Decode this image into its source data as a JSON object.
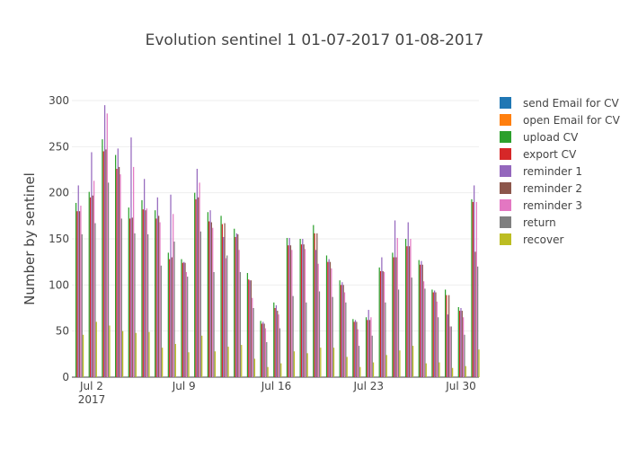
{
  "chart_data": {
    "type": "bar",
    "title": "Evolution sentinel 1 01-07-2017 01-08-2017",
    "xlabel": "",
    "ylabel": "Number by sentinel",
    "ylim": [
      0,
      310
    ],
    "yticks": [
      0,
      50,
      100,
      150,
      200,
      250,
      300
    ],
    "x_tick_labels": [
      {
        "date": "2017-07-02",
        "label": "Jul 2",
        "sublabel": "2017"
      },
      {
        "date": "2017-07-09",
        "label": "Jul 9",
        "sublabel": ""
      },
      {
        "date": "2017-07-16",
        "label": "Jul 16",
        "sublabel": ""
      },
      {
        "date": "2017-07-23",
        "label": "Jul 23",
        "sublabel": ""
      },
      {
        "date": "2017-07-30",
        "label": "Jul 30",
        "sublabel": ""
      }
    ],
    "grid": true,
    "legend_position": "right",
    "categories": [
      "2017-07-01",
      "2017-07-02",
      "2017-07-03",
      "2017-07-04",
      "2017-07-05",
      "2017-07-06",
      "2017-07-07",
      "2017-07-08",
      "2017-07-09",
      "2017-07-10",
      "2017-07-11",
      "2017-07-12",
      "2017-07-13",
      "2017-07-14",
      "2017-07-15",
      "2017-07-16",
      "2017-07-17",
      "2017-07-18",
      "2017-07-19",
      "2017-07-20",
      "2017-07-21",
      "2017-07-22",
      "2017-07-23",
      "2017-07-24",
      "2017-07-25",
      "2017-07-26",
      "2017-07-27",
      "2017-07-28",
      "2017-07-29",
      "2017-07-30",
      "2017-07-31"
    ],
    "series": [
      {
        "name": "send Email for CV",
        "color": "#1f77b4",
        "values": [
          0,
          0,
          0,
          0,
          0,
          0,
          0,
          0,
          0,
          0,
          0,
          0,
          0,
          0,
          0,
          0,
          0,
          0,
          0,
          0,
          0,
          0,
          0,
          0,
          0,
          0,
          0,
          0,
          0,
          0,
          0
        ]
      },
      {
        "name": "open Email for CV",
        "color": "#ff7f0e",
        "values": [
          0,
          0,
          0,
          0,
          0,
          0,
          0,
          0,
          0,
          0,
          0,
          0,
          0,
          0,
          0,
          0,
          0,
          0,
          0,
          0,
          0,
          0,
          0,
          0,
          0,
          0,
          0,
          0,
          0,
          0,
          0
        ]
      },
      {
        "name": "upload CV",
        "color": "#2ca02c",
        "values": [
          189,
          201,
          258,
          241,
          184,
          192,
          181,
          135,
          128,
          200,
          179,
          175,
          161,
          113,
          61,
          81,
          151,
          150,
          165,
          132,
          105,
          63,
          65,
          119,
          135,
          150,
          127,
          95,
          95,
          76,
          193
        ]
      },
      {
        "name": "export CV",
        "color": "#d62728",
        "values": [
          180,
          195,
          245,
          226,
          172,
          182,
          172,
          128,
          124,
          193,
          169,
          166,
          152,
          106,
          58,
          75,
          143,
          144,
          156,
          125,
          100,
          60,
          62,
          115,
          130,
          142,
          122,
          92,
          89,
          72,
          190
        ]
      },
      {
        "name": "reminder 1",
        "color": "#9467bd",
        "values": [
          208,
          244,
          295,
          248,
          260,
          215,
          195,
          198,
          125,
          226,
          181,
          152,
          156,
          105,
          60,
          78,
          151,
          150,
          138,
          128,
          103,
          62,
          73,
          130,
          170,
          168,
          126,
          94,
          68,
          75,
          208
        ]
      },
      {
        "name": "reminder 2",
        "color": "#8c564b",
        "values": [
          180,
          197,
          247,
          228,
          173,
          181,
          175,
          130,
          124,
          195,
          168,
          167,
          155,
          105,
          58,
          72,
          143,
          144,
          156,
          125,
          100,
          60,
          62,
          115,
          130,
          142,
          122,
          92,
          89,
          72,
          136
        ]
      },
      {
        "name": "reminder 3",
        "color": "#e377c2",
        "values": [
          186,
          213,
          286,
          220,
          228,
          183,
          168,
          177,
          114,
          211,
          162,
          129,
          138,
          86,
          53,
          68,
          138,
          139,
          123,
          118,
          92,
          52,
          65,
          114,
          151,
          150,
          104,
          82,
          55,
          65,
          190
        ]
      },
      {
        "name": "return",
        "color": "#7f7f7f",
        "values": [
          155,
          167,
          211,
          172,
          156,
          155,
          121,
          147,
          109,
          158,
          114,
          132,
          114,
          75,
          38,
          53,
          88,
          81,
          93,
          87,
          81,
          34,
          45,
          81,
          95,
          108,
          96,
          65,
          55,
          46,
          120
        ]
      },
      {
        "name": "recover",
        "color": "#bcbd22",
        "values": [
          46,
          60,
          56,
          50,
          48,
          49,
          32,
          36,
          27,
          45,
          28,
          33,
          35,
          20,
          11,
          15,
          28,
          26,
          32,
          32,
          22,
          11,
          16,
          24,
          29,
          34,
          15,
          16,
          10,
          12,
          30
        ]
      }
    ]
  }
}
